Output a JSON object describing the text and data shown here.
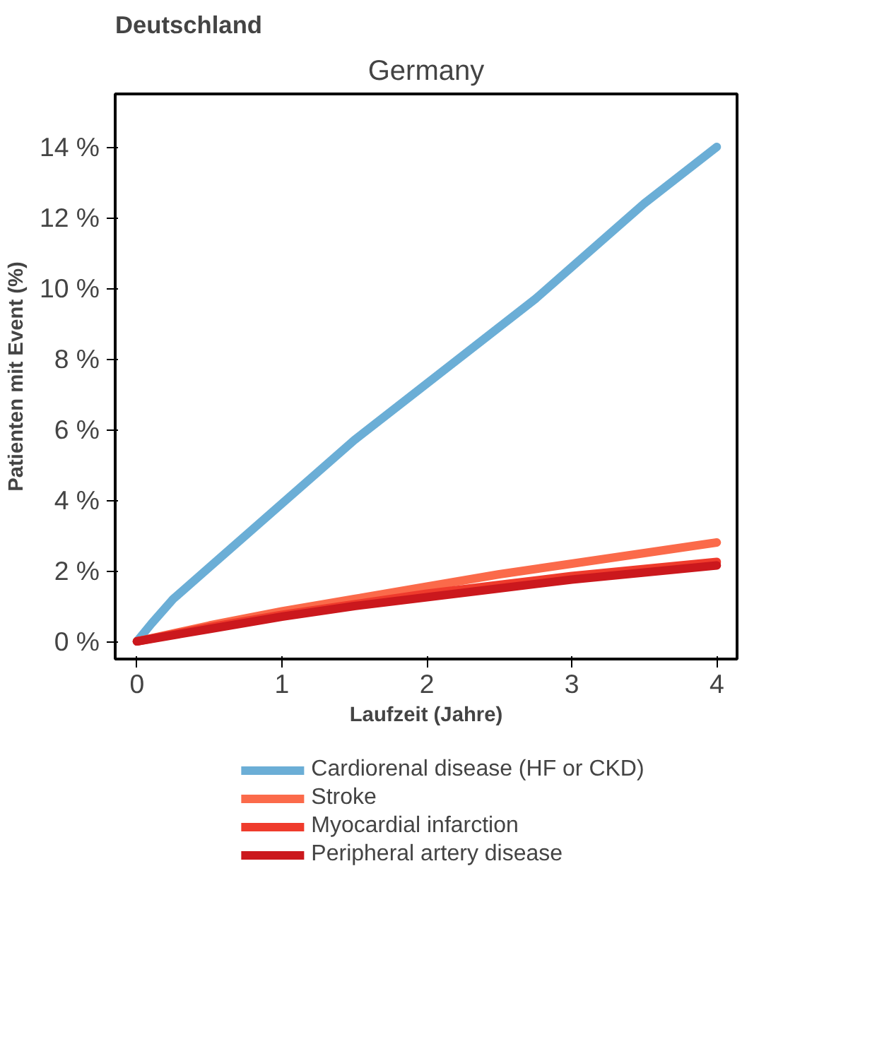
{
  "chart_data": {
    "type": "line",
    "title": "Deutschland",
    "subtitle": "Germany",
    "xlabel": "Laufzeit (Jahre)",
    "ylabel": "Patienten mit Event (%)",
    "xlim": [
      -0.15,
      4.14
    ],
    "ylim": [
      -0.5,
      15.5
    ],
    "xticks": [
      0,
      1,
      2,
      3,
      4
    ],
    "yticks": [
      {
        "value": 0,
        "label": "0 %"
      },
      {
        "value": 2,
        "label": "2 %"
      },
      {
        "value": 4,
        "label": "4 %"
      },
      {
        "value": 6,
        "label": "6 %"
      },
      {
        "value": 8,
        "label": "8 %"
      },
      {
        "value": 10,
        "label": "10 %"
      },
      {
        "value": 12,
        "label": "12 %"
      },
      {
        "value": 14,
        "label": "14 %"
      }
    ],
    "grid": false,
    "legend": "bottom",
    "marker": "none",
    "line_style": "solid",
    "series": [
      {
        "name": "Cardiorenal disease (HF or CKD)",
        "color": "#6baed6",
        "x": [
          0,
          0.1,
          0.25,
          0.5,
          0.75,
          1,
          1.25,
          1.5,
          1.75,
          2,
          2.25,
          2.5,
          2.75,
          3,
          3.25,
          3.5,
          3.75,
          4
        ],
        "values": [
          0,
          0.5,
          1.2,
          2.1,
          3.0,
          3.9,
          4.8,
          5.7,
          6.5,
          7.3,
          8.1,
          8.9,
          9.7,
          10.6,
          11.5,
          12.4,
          13.2,
          14.0
        ]
      },
      {
        "name": "Stroke",
        "color": "#fb6a4a",
        "x": [
          0,
          0.5,
          1,
          1.5,
          2,
          2.5,
          3,
          3.5,
          4
        ],
        "values": [
          0,
          0.45,
          0.85,
          1.2,
          1.55,
          1.9,
          2.2,
          2.5,
          2.8
        ]
      },
      {
        "name": "Myocardial infarction",
        "color": "#ef3b2c",
        "x": [
          0,
          0.5,
          1,
          1.5,
          2,
          2.5,
          3,
          3.5,
          4
        ],
        "values": [
          0,
          0.4,
          0.75,
          1.05,
          1.35,
          1.6,
          1.85,
          2.05,
          2.25
        ]
      },
      {
        "name": "Peripheral artery disease",
        "color": "#cb181d",
        "x": [
          0,
          0.5,
          1,
          1.5,
          2,
          2.5,
          3,
          3.5,
          4
        ],
        "values": [
          0,
          0.35,
          0.7,
          1.0,
          1.25,
          1.5,
          1.75,
          1.95,
          2.15
        ]
      }
    ]
  }
}
